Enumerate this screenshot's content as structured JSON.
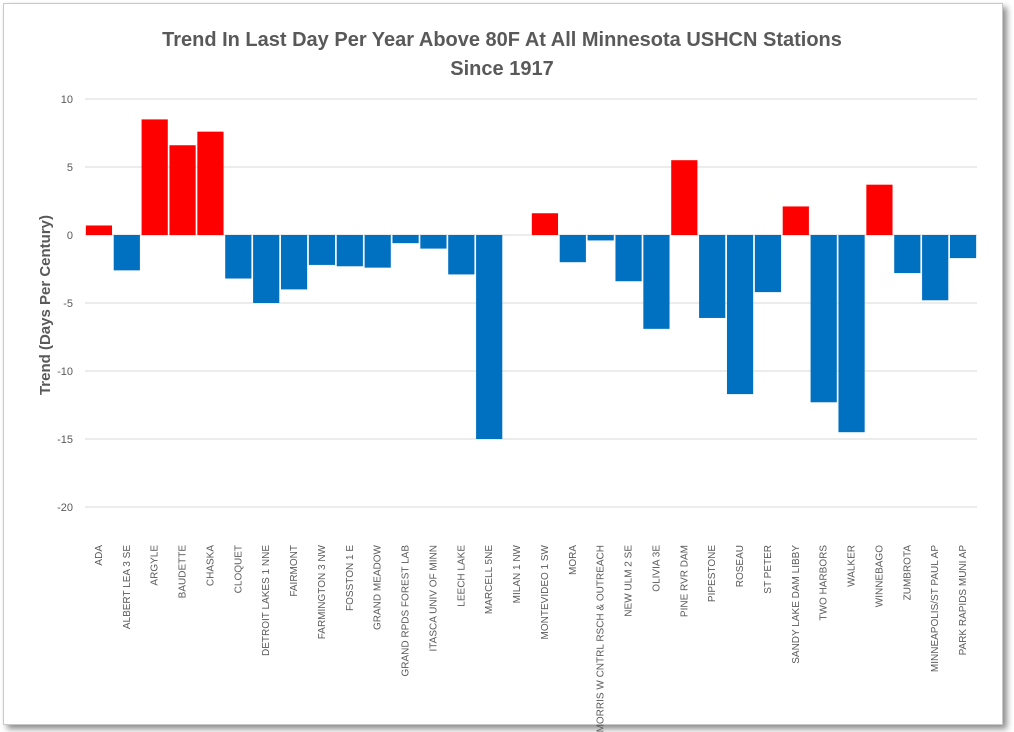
{
  "chart_data": {
    "type": "bar",
    "title": "Trend In Last Day Per Year Above 80F At All Minnesota USHCN Stations",
    "subtitle": "Since 1917",
    "xlabel": "",
    "ylabel": "Trend (Days Per Century)",
    "ylim": [
      -20,
      10
    ],
    "yticks": [
      10,
      5,
      0,
      -5,
      -10,
      -15,
      -20
    ],
    "grid": true,
    "colors": {
      "positive": "#ff0000",
      "negative": "#0070c0"
    },
    "categories": [
      "ADA",
      "ALBERT LEA 3 SE",
      "ARGYLE",
      "BAUDETTE",
      "CHASKA",
      "CLOQUET",
      "DETROIT LAKES 1 NNE",
      "FAIRMONT",
      "FARMINGTON 3 NW",
      "FOSSTON 1 E",
      "GRAND MEADOW",
      "GRAND RPDS FOREST LAB",
      "ITASCA UNIV OF MINN",
      "LEECH LAKE",
      "MARCELL 5NE",
      "MILAN 1 NW",
      "MONTEVIDEO 1 SW",
      "MORA",
      "MORRIS W CNTRL RSCH & OUTREACH",
      "NEW ULM 2 SE",
      "OLIVIA 3E",
      "PINE RVR DAM",
      "PIPESTONE",
      "ROSEAU",
      "ST PETER",
      "SANDY LAKE DAM LIBBY",
      "TWO HARBORS",
      "WALKER",
      "WINNEBAGO",
      "ZUMBROTA",
      "MINNEAPOLIS/ST PAUL AP",
      "PARK RAPIDS MUNI AP"
    ],
    "values": [
      0.7,
      -2.6,
      8.5,
      6.6,
      7.6,
      -3.2,
      -5.0,
      -4.0,
      -2.2,
      -2.3,
      -2.4,
      -0.6,
      -1.0,
      -2.9,
      -15.0,
      0.0,
      1.6,
      -2.0,
      -0.4,
      -3.4,
      -6.9,
      5.5,
      -6.1,
      -11.7,
      -4.2,
      2.1,
      -12.3,
      -14.5,
      3.7,
      -2.8,
      -4.8,
      -1.7
    ]
  }
}
